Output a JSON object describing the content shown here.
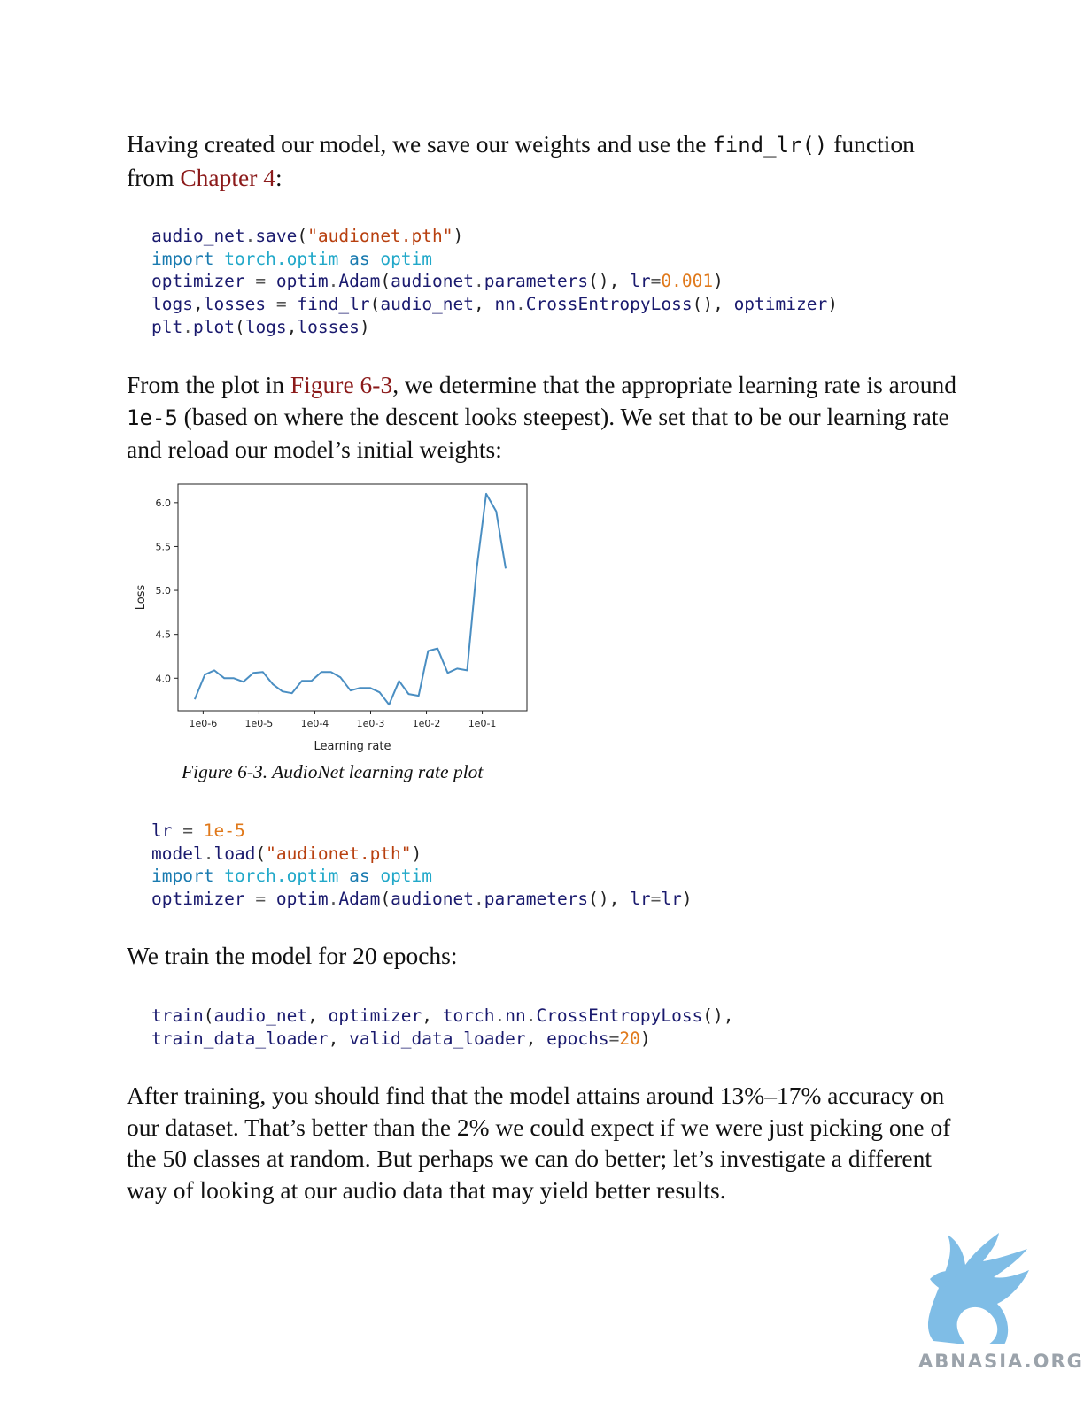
{
  "para1": {
    "t1": "Having created our model, we save our weights and use the ",
    "code": "find_lr()",
    "t2": " function from ",
    "link": "Chapter 4",
    "t3": ":"
  },
  "code1": [
    [
      [
        "audio_net",
        "n"
      ],
      [
        ".",
        "o"
      ],
      [
        "save",
        "n"
      ],
      [
        "(",
        "p"
      ],
      [
        "\"audionet.pth\"",
        "s"
      ],
      [
        ")",
        "p"
      ]
    ],
    [
      [
        "import",
        "k"
      ],
      [
        " ",
        "p"
      ],
      [
        "torch.optim",
        "m"
      ],
      [
        " ",
        "p"
      ],
      [
        "as",
        "k"
      ],
      [
        " ",
        "p"
      ],
      [
        "optim",
        "m"
      ]
    ],
    [
      [
        "optimizer",
        "n"
      ],
      [
        " ",
        "p"
      ],
      [
        "=",
        "o"
      ],
      [
        " ",
        "p"
      ],
      [
        "optim",
        "n"
      ],
      [
        ".",
        "o"
      ],
      [
        "Adam",
        "n"
      ],
      [
        "(",
        "p"
      ],
      [
        "audionet",
        "n"
      ],
      [
        ".",
        "o"
      ],
      [
        "parameters",
        "n"
      ],
      [
        "(), ",
        "p"
      ],
      [
        "lr",
        "n"
      ],
      [
        "=",
        "o"
      ],
      [
        "0.001",
        "d"
      ],
      [
        ")",
        "p"
      ]
    ],
    [
      [
        "logs",
        "n"
      ],
      [
        ",",
        "p"
      ],
      [
        "losses",
        "n"
      ],
      [
        " ",
        "p"
      ],
      [
        "=",
        "o"
      ],
      [
        " ",
        "p"
      ],
      [
        "find_lr",
        "n"
      ],
      [
        "(",
        "p"
      ],
      [
        "audio_net",
        "n"
      ],
      [
        ", ",
        "p"
      ],
      [
        "nn",
        "n"
      ],
      [
        ".",
        "o"
      ],
      [
        "CrossEntropyLoss",
        "n"
      ],
      [
        "(), ",
        "p"
      ],
      [
        "optimizer",
        "n"
      ],
      [
        ")",
        "p"
      ]
    ],
    [
      [
        "plt",
        "n"
      ],
      [
        ".",
        "o"
      ],
      [
        "plot",
        "n"
      ],
      [
        "(",
        "p"
      ],
      [
        "logs",
        "n"
      ],
      [
        ",",
        "p"
      ],
      [
        "losses",
        "n"
      ],
      [
        ")",
        "p"
      ]
    ]
  ],
  "para2": {
    "t1": "From the plot in ",
    "link": "Figure 6-3",
    "t2": ", we determine that the appropriate learning rate is around ",
    "code": "1e-5",
    "t3": " (based on where the descent looks steepest). We set that to be our learning rate and reload our model’s initial weights:"
  },
  "chart_data": {
    "type": "line",
    "title": "",
    "xlabel": "Learning rate",
    "ylabel": "Loss",
    "x_scale": "log",
    "x_tick_labels": [
      "1e0-6",
      "1e0-5",
      "1e0-4",
      "1e0-3",
      "1e0-2",
      "1e0-1"
    ],
    "x_tick_values": [
      -6,
      -5,
      -4,
      -3,
      -2,
      -1
    ],
    "y_ticks": [
      4.0,
      4.5,
      5.0,
      5.5,
      6.0
    ],
    "xlim": [
      -6.45,
      -0.2
    ],
    "ylim": [
      3.63,
      6.21
    ],
    "grid": false,
    "legend": "none",
    "color": "#4a8ec2",
    "series": [
      {
        "x": [
          -6.15,
          -5.97,
          -5.8,
          -5.62,
          -5.45,
          -5.28,
          -5.1,
          -4.93,
          -4.75,
          -4.58,
          -4.41,
          -4.23,
          -4.06,
          -3.88,
          -3.71,
          -3.54,
          -3.36,
          -3.19,
          -3.01,
          -2.84,
          -2.67,
          -2.49,
          -2.32,
          -2.14,
          -1.97,
          -1.8,
          -1.62,
          -1.45,
          -1.27,
          -1.1,
          -0.93,
          -0.75,
          -0.58
        ],
        "y": [
          3.76,
          4.04,
          4.09,
          4.0,
          4.0,
          3.96,
          4.06,
          4.07,
          3.93,
          3.85,
          3.83,
          3.97,
          3.97,
          4.07,
          4.07,
          4.01,
          3.86,
          3.89,
          3.89,
          3.84,
          3.7,
          3.97,
          3.82,
          3.8,
          4.31,
          4.34,
          4.06,
          4.11,
          4.09,
          5.25,
          6.1,
          5.9,
          5.25
        ]
      }
    ]
  },
  "caption": "Figure 6-3. AudioNet learning rate plot",
  "code2": [
    [
      [
        "lr",
        "n"
      ],
      [
        " ",
        "p"
      ],
      [
        "=",
        "o"
      ],
      [
        " ",
        "p"
      ],
      [
        "1e-5",
        "d"
      ]
    ],
    [
      [
        "model",
        "n"
      ],
      [
        ".",
        "o"
      ],
      [
        "load",
        "n"
      ],
      [
        "(",
        "p"
      ],
      [
        "\"audionet.pth\"",
        "s"
      ],
      [
        ")",
        "p"
      ]
    ],
    [
      [
        "import",
        "k"
      ],
      [
        " ",
        "p"
      ],
      [
        "torch.optim",
        "m"
      ],
      [
        " ",
        "p"
      ],
      [
        "as",
        "k"
      ],
      [
        " ",
        "p"
      ],
      [
        "optim",
        "m"
      ]
    ],
    [
      [
        "optimizer",
        "n"
      ],
      [
        " ",
        "p"
      ],
      [
        "=",
        "o"
      ],
      [
        " ",
        "p"
      ],
      [
        "optim",
        "n"
      ],
      [
        ".",
        "o"
      ],
      [
        "Adam",
        "n"
      ],
      [
        "(",
        "p"
      ],
      [
        "audionet",
        "n"
      ],
      [
        ".",
        "o"
      ],
      [
        "parameters",
        "n"
      ],
      [
        "(), ",
        "p"
      ],
      [
        "lr",
        "n"
      ],
      [
        "=",
        "o"
      ],
      [
        "lr",
        "n"
      ],
      [
        ")",
        "p"
      ]
    ]
  ],
  "para3": "We train the model for 20 epochs:",
  "code3": [
    [
      [
        "train",
        "n"
      ],
      [
        "(",
        "p"
      ],
      [
        "audio_net",
        "n"
      ],
      [
        ", ",
        "p"
      ],
      [
        "optimizer",
        "n"
      ],
      [
        ", ",
        "p"
      ],
      [
        "torch",
        "n"
      ],
      [
        ".",
        "o"
      ],
      [
        "nn",
        "n"
      ],
      [
        ".",
        "o"
      ],
      [
        "CrossEntropyLoss",
        "n"
      ],
      [
        "(),",
        "p"
      ]
    ],
    [
      [
        "train_data_loader",
        "n"
      ],
      [
        ", ",
        "p"
      ],
      [
        "valid_data_loader",
        "n"
      ],
      [
        ", ",
        "p"
      ],
      [
        "epochs",
        "n"
      ],
      [
        "=",
        "o"
      ],
      [
        "20",
        "d"
      ],
      [
        ")",
        "p"
      ]
    ]
  ],
  "para4": "After training, you should find that the model attains around 13%–17% accuracy on our dataset. That’s better than the 2% we could expect if we were just picking one of the 50 classes at random. But perhaps we can do better; let’s investigate a different way of looking at our audio data that may yield better results.",
  "watermark": {
    "text": "ABNASIA.ORG",
    "icon": "griffin-logo",
    "color": "#7fbde6"
  }
}
